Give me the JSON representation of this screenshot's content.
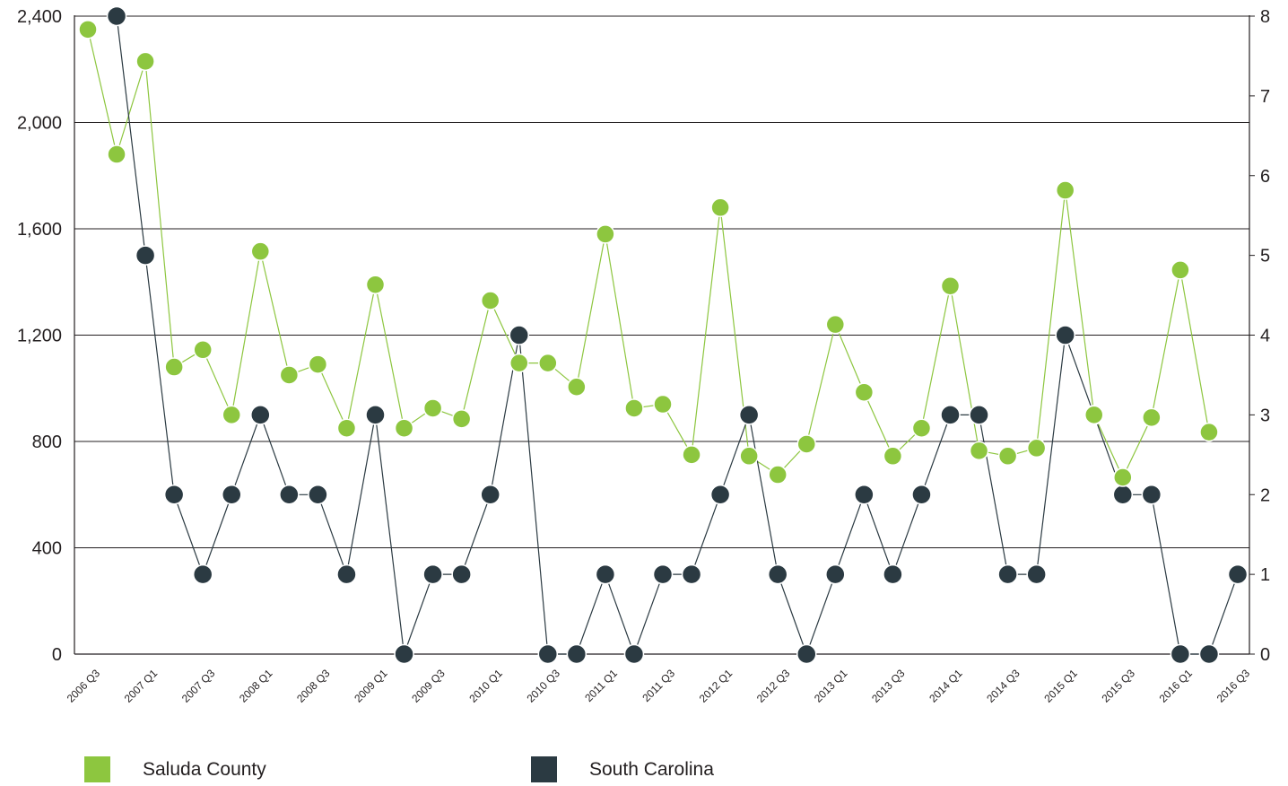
{
  "chart_data": {
    "type": "line",
    "categories": [
      "2006 Q3",
      "2006 Q4",
      "2007 Q1",
      "2007 Q2",
      "2007 Q3",
      "2007 Q4",
      "2008 Q1",
      "2008 Q2",
      "2008 Q3",
      "2008 Q4",
      "2009 Q1",
      "2009 Q2",
      "2009 Q3",
      "2009 Q4",
      "2010 Q1",
      "2010 Q2",
      "2010 Q3",
      "2010 Q4",
      "2011 Q1",
      "2011 Q2",
      "2011 Q3",
      "2011 Q4",
      "2012 Q1",
      "2012 Q2",
      "2012 Q3",
      "2012 Q4",
      "2013 Q1",
      "2013 Q2",
      "2013 Q3",
      "2013 Q4",
      "2014 Q1",
      "2014 Q2",
      "2014 Q3",
      "2014 Q4",
      "2015 Q1",
      "2015 Q2",
      "2015 Q3",
      "2015 Q4",
      "2016 Q1",
      "2016 Q2",
      "2016 Q3"
    ],
    "x_tick_labels": [
      "2006 Q3",
      "2007 Q1",
      "2007 Q3",
      "2008 Q1",
      "2008 Q3",
      "2009 Q1",
      "2009 Q3",
      "2010 Q1",
      "2010 Q3",
      "2011 Q1",
      "2011 Q3",
      "2012 Q1",
      "2012 Q3",
      "2013 Q1",
      "2013 Q3",
      "2014 Q1",
      "2014 Q3",
      "2015 Q1",
      "2015 Q3",
      "2016 Q1",
      "2016 Q3"
    ],
    "y_left_ticks": [
      "0",
      "400",
      "800",
      "1,200",
      "1,600",
      "2,000",
      "2,400"
    ],
    "y_right_ticks": [
      "0",
      "1",
      "2",
      "3",
      "4",
      "5",
      "6",
      "7",
      "8"
    ],
    "y_left_lim": [
      0,
      2400
    ],
    "y_right_lim": [
      0,
      8
    ],
    "grid": true,
    "legend_position": "bottom",
    "series": [
      {
        "name": "Saluda County",
        "axis": "left",
        "color": "#8dc63f",
        "values": [
          2350,
          1880,
          2230,
          1080,
          1145,
          900,
          1515,
          1050,
          1090,
          850,
          1390,
          850,
          925,
          885,
          1330,
          1095,
          1095,
          1005,
          1580,
          925,
          940,
          750,
          1680,
          745,
          675,
          790,
          1240,
          985,
          745,
          850,
          1385,
          765,
          745,
          775,
          1745,
          900,
          665,
          890,
          1445,
          835,
          null
        ]
      },
      {
        "name": "South Carolina",
        "axis": "right",
        "color": "#2b3a42",
        "values": [
          null,
          8,
          5,
          2,
          1,
          2,
          3,
          2,
          2,
          1,
          3,
          0,
          1,
          1,
          2,
          4,
          0,
          0,
          1,
          0,
          1,
          1,
          2,
          3,
          1,
          0,
          1,
          2,
          1,
          2,
          3,
          3,
          1,
          1,
          4,
          3,
          2,
          2,
          0,
          0,
          1
        ]
      }
    ]
  }
}
